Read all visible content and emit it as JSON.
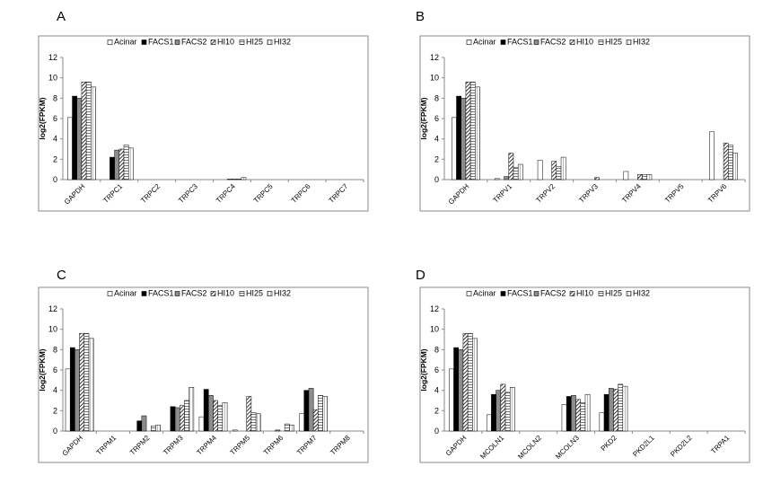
{
  "panel_letters": [
    "A",
    "B",
    "C",
    "D"
  ],
  "series_names": [
    "Acinar",
    "FACS1",
    "FACS2",
    "HI10",
    "HI25",
    "HI32"
  ],
  "ylabel": "log2(FPKM)",
  "ylim": [
    0,
    12
  ],
  "chart_data": [
    {
      "type": "bar",
      "panel": "A",
      "categories": [
        "GAPDH",
        "TRPC1",
        "TRPC2",
        "TRPC3",
        "TRPC4",
        "TRPC5",
        "TRPC6",
        "TRPC7"
      ],
      "ylabel": "log2(FPKM)",
      "ylim": [
        0,
        12
      ],
      "yticks": [
        0,
        2,
        4,
        6,
        8,
        10,
        12
      ],
      "legend": "top-center",
      "grid": false,
      "series": [
        {
          "name": "Acinar",
          "values": [
            6.1,
            0,
            0,
            0,
            0,
            0,
            0,
            0
          ]
        },
        {
          "name": "FACS1",
          "values": [
            8.2,
            2.2,
            0,
            0,
            0,
            0,
            0,
            0
          ]
        },
        {
          "name": "FACS2",
          "values": [
            8.0,
            2.9,
            0,
            0,
            0.05,
            0,
            0,
            0
          ]
        },
        {
          "name": "HI10",
          "values": [
            9.6,
            3.0,
            0,
            0,
            0.05,
            0,
            0,
            0
          ]
        },
        {
          "name": "HI25",
          "values": [
            9.6,
            3.4,
            0,
            0,
            0.05,
            0,
            0,
            0
          ]
        },
        {
          "name": "HI32",
          "values": [
            9.1,
            3.1,
            0,
            0,
            0.2,
            0,
            0,
            0
          ]
        }
      ]
    },
    {
      "type": "bar",
      "panel": "B",
      "categories": [
        "GAPDH",
        "TRPV1",
        "TRPV2",
        "TRPV3",
        "TRPV4",
        "TRPV5",
        "TRPV6"
      ],
      "ylabel": "log2(FPKM)",
      "ylim": [
        0,
        12
      ],
      "yticks": [
        0,
        2,
        4,
        6,
        8,
        10,
        12
      ],
      "legend": "top-center",
      "grid": false,
      "series": [
        {
          "name": "Acinar",
          "values": [
            6.1,
            0.1,
            1.9,
            0,
            0.8,
            0,
            4.7
          ]
        },
        {
          "name": "FACS1",
          "values": [
            8.2,
            0,
            0,
            0,
            0,
            0,
            0
          ]
        },
        {
          "name": "FACS2",
          "values": [
            8.0,
            0.3,
            0,
            0,
            0,
            0,
            0
          ]
        },
        {
          "name": "HI10",
          "values": [
            9.6,
            2.6,
            1.8,
            0.2,
            0.5,
            0,
            3.6
          ]
        },
        {
          "name": "HI25",
          "values": [
            9.6,
            1.2,
            1.3,
            0,
            0.5,
            0,
            3.4
          ]
        },
        {
          "name": "HI32",
          "values": [
            9.1,
            1.5,
            2.2,
            0,
            0.5,
            0,
            2.6
          ]
        }
      ]
    },
    {
      "type": "bar",
      "panel": "C",
      "categories": [
        "GAPDH",
        "TRPM1",
        "TRPM2",
        "TRPM3",
        "TRPM4",
        "TRPM5",
        "TRPM6",
        "TRPM7",
        "TRPM8"
      ],
      "ylabel": "log2(FPKM)",
      "ylim": [
        0,
        12
      ],
      "yticks": [
        0,
        2,
        4,
        6,
        8,
        10,
        12
      ],
      "legend": "top-center",
      "grid": false,
      "series": [
        {
          "name": "Acinar",
          "values": [
            6.1,
            0,
            0,
            0,
            1.4,
            0.1,
            0,
            1.7,
            0
          ]
        },
        {
          "name": "FACS1",
          "values": [
            8.2,
            0,
            1.0,
            2.4,
            4.1,
            0,
            0,
            4.0,
            0
          ]
        },
        {
          "name": "FACS2",
          "values": [
            8.0,
            0,
            1.5,
            2.3,
            3.5,
            0,
            0.1,
            4.2,
            0
          ]
        },
        {
          "name": "HI10",
          "values": [
            9.6,
            0,
            0,
            2.5,
            3.0,
            3.4,
            0,
            2.1,
            0
          ]
        },
        {
          "name": "HI25",
          "values": [
            9.6,
            0,
            0.5,
            3.0,
            2.5,
            1.8,
            0.7,
            3.5,
            0
          ]
        },
        {
          "name": "HI32",
          "values": [
            9.1,
            0,
            0.6,
            4.3,
            2.8,
            1.7,
            0.6,
            3.4,
            0
          ]
        }
      ]
    },
    {
      "type": "bar",
      "panel": "D",
      "categories": [
        "GAPDH",
        "MCOLN1",
        "MCOLN2",
        "MCOLN3",
        "PKD2",
        "PKD2L1",
        "PKD2L2",
        "TRPA1"
      ],
      "ylabel": "log2(FPKM)",
      "ylim": [
        0,
        12
      ],
      "yticks": [
        0,
        2,
        4,
        6,
        8,
        10,
        12
      ],
      "legend": "top-center",
      "grid": false,
      "series": [
        {
          "name": "Acinar",
          "values": [
            6.1,
            1.6,
            0,
            2.6,
            1.8,
            0,
            0,
            0
          ]
        },
        {
          "name": "FACS1",
          "values": [
            8.2,
            3.6,
            0,
            3.4,
            3.6,
            0,
            0,
            0
          ]
        },
        {
          "name": "FACS2",
          "values": [
            8.0,
            4.0,
            0,
            3.5,
            4.2,
            0,
            0,
            0
          ]
        },
        {
          "name": "HI10",
          "values": [
            9.6,
            4.6,
            0,
            3.1,
            4.1,
            0,
            0,
            0
          ]
        },
        {
          "name": "HI25",
          "values": [
            9.6,
            3.8,
            0,
            2.8,
            4.6,
            0,
            0,
            0
          ]
        },
        {
          "name": "HI32",
          "values": [
            9.1,
            4.3,
            0,
            3.6,
            4.4,
            0,
            0,
            0
          ]
        }
      ]
    }
  ]
}
